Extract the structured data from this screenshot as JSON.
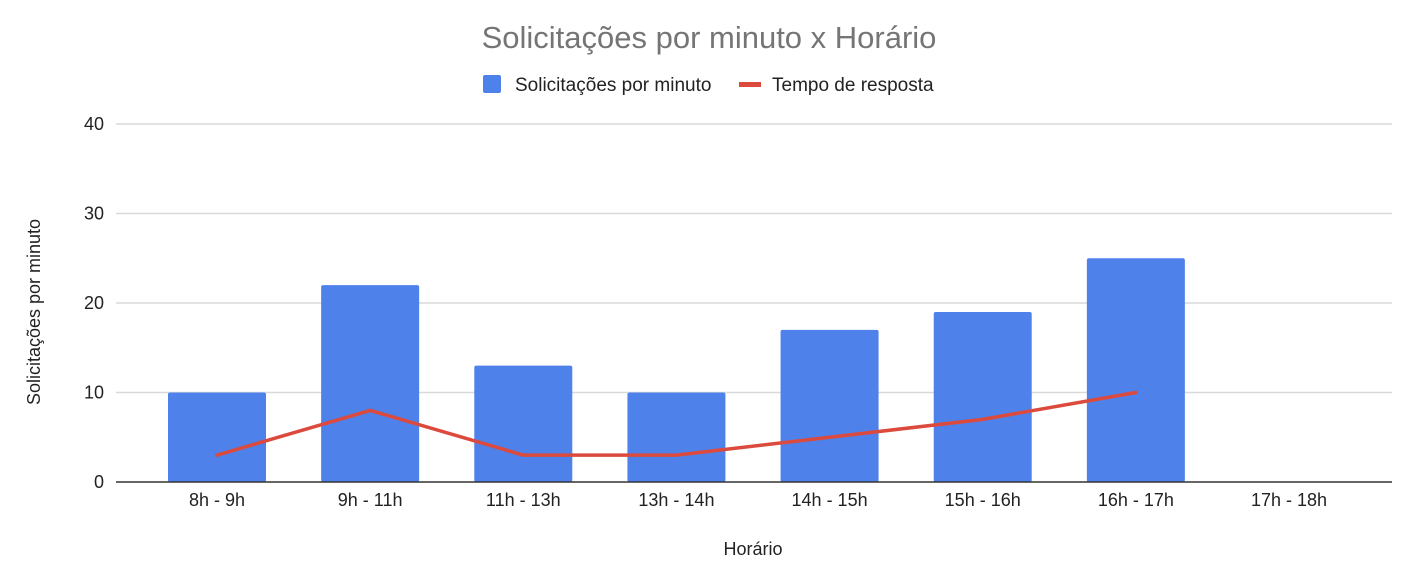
{
  "chart_data": {
    "type": "bar",
    "title": "Solicitações por minuto x Horário",
    "xlabel": "Horário",
    "ylabel": "Solicitações por minuto",
    "categories": [
      "8h - 9h",
      "9h - 11h",
      "11h - 13h",
      "13h - 14h",
      "14h - 15h",
      "15h - 16h",
      "16h - 17h",
      "17h - 18h"
    ],
    "ylim": [
      0,
      40
    ],
    "yticks": [
      "0",
      "10",
      "20",
      "30",
      "40"
    ],
    "grid": true,
    "legend_position": "top",
    "series": [
      {
        "name": "Solicitações por minuto",
        "kind": "bar",
        "color": "#4f81ea",
        "values": [
          10,
          22,
          13,
          10,
          17,
          19,
          25,
          null
        ]
      },
      {
        "name": "Tempo de resposta",
        "kind": "line",
        "color": "#db4a3c",
        "values": [
          3,
          8,
          3,
          3,
          5,
          7,
          10,
          null
        ]
      }
    ]
  }
}
